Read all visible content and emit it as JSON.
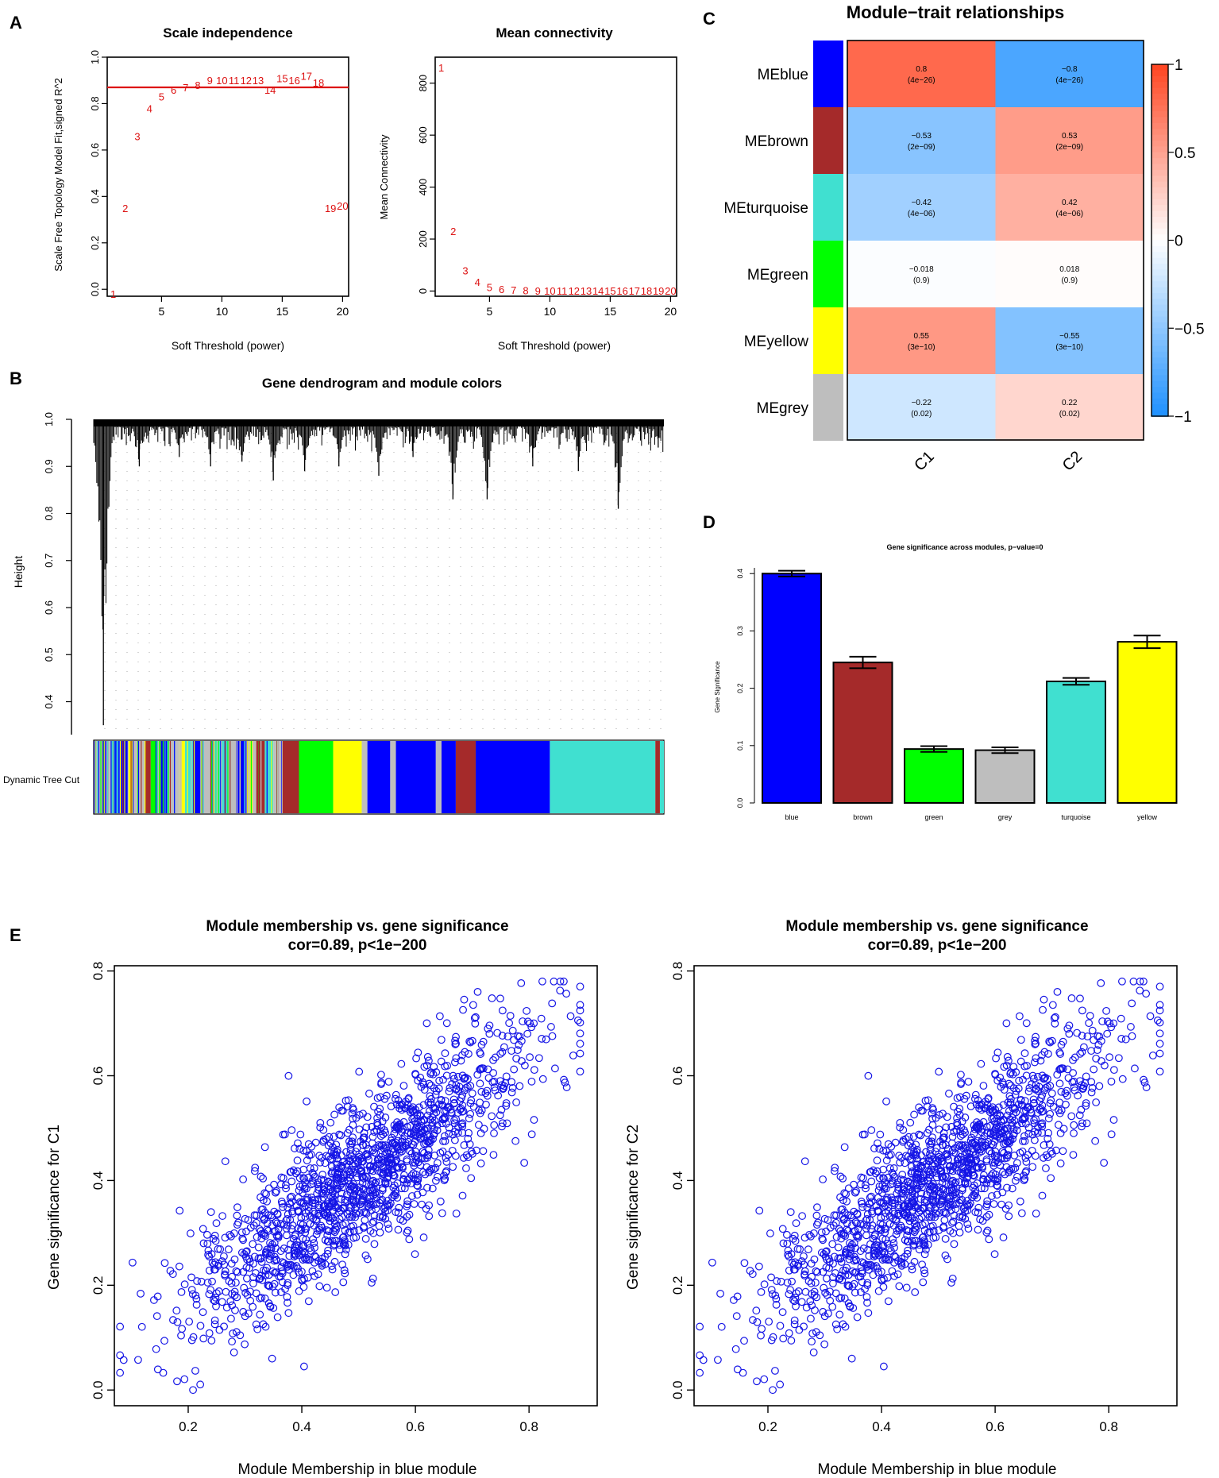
{
  "panel_labels": {
    "a": "A",
    "b": "B",
    "c": "C",
    "d": "D",
    "e": "E"
  },
  "colors": {
    "red": "#dd1111",
    "axis": "#000000",
    "scatter": "#1515e6"
  },
  "chart_data": [
    {
      "id": "scale_independence",
      "type": "scatter",
      "title": "Scale independence",
      "xlabel": "Soft Threshold (power)",
      "ylabel": "Scale Free Topology Model Fit,signed R^2",
      "xlim": [
        0.5,
        20.5
      ],
      "ylim": [
        -0.03,
        1.0
      ],
      "xticks": [
        5,
        10,
        15,
        20
      ],
      "yticks": [
        0.0,
        0.2,
        0.4,
        0.6,
        0.8,
        1.0
      ],
      "ytick_labels": [
        "0.0",
        "0.2",
        "0.4",
        "0.6",
        "0.8",
        "1.0"
      ],
      "hline": 0.87,
      "points": [
        {
          "x": 1,
          "y": -0.02,
          "label": "1"
        },
        {
          "x": 2,
          "y": 0.35,
          "label": "2"
        },
        {
          "x": 3,
          "y": 0.66,
          "label": "3"
        },
        {
          "x": 4,
          "y": 0.78,
          "label": "4"
        },
        {
          "x": 5,
          "y": 0.83,
          "label": "5"
        },
        {
          "x": 6,
          "y": 0.86,
          "label": "6"
        },
        {
          "x": 7,
          "y": 0.87,
          "label": "7"
        },
        {
          "x": 8,
          "y": 0.88,
          "label": "8"
        },
        {
          "x": 9,
          "y": 0.9,
          "label": "9"
        },
        {
          "x": 10,
          "y": 0.9,
          "label": "10"
        },
        {
          "x": 11,
          "y": 0.9,
          "label": "11"
        },
        {
          "x": 12,
          "y": 0.9,
          "label": "12"
        },
        {
          "x": 13,
          "y": 0.9,
          "label": "13"
        },
        {
          "x": 14,
          "y": 0.86,
          "label": "14"
        },
        {
          "x": 15,
          "y": 0.91,
          "label": "15"
        },
        {
          "x": 16,
          "y": 0.9,
          "label": "16"
        },
        {
          "x": 17,
          "y": 0.92,
          "label": "17"
        },
        {
          "x": 18,
          "y": 0.89,
          "label": "18"
        },
        {
          "x": 19,
          "y": 0.35,
          "label": "19"
        },
        {
          "x": 20,
          "y": 0.36,
          "label": "20"
        }
      ]
    },
    {
      "id": "mean_connectivity",
      "type": "scatter",
      "title": "Mean connectivity",
      "xlabel": "Soft Threshold (power)",
      "ylabel": "Mean Connectivity",
      "xlim": [
        0.5,
        20.5
      ],
      "ylim": [
        -20,
        900
      ],
      "xticks": [
        5,
        10,
        15,
        20
      ],
      "yticks": [
        0,
        200,
        400,
        600,
        800
      ],
      "ytick_labels": [
        "0",
        "200",
        "400",
        "600",
        "800"
      ],
      "points": [
        {
          "x": 1,
          "y": 860,
          "label": "1"
        },
        {
          "x": 2,
          "y": 230,
          "label": "2"
        },
        {
          "x": 3,
          "y": 80,
          "label": "3"
        },
        {
          "x": 4,
          "y": 35,
          "label": "4"
        },
        {
          "x": 5,
          "y": 15,
          "label": "5"
        },
        {
          "x": 6,
          "y": 7,
          "label": "6"
        },
        {
          "x": 7,
          "y": 5,
          "label": "7"
        },
        {
          "x": 8,
          "y": 3,
          "label": "8"
        },
        {
          "x": 9,
          "y": 2,
          "label": "9"
        },
        {
          "x": 10,
          "y": 1,
          "label": "10"
        },
        {
          "x": 11,
          "y": 1,
          "label": "11"
        },
        {
          "x": 12,
          "y": 1,
          "label": "12"
        },
        {
          "x": 13,
          "y": 1,
          "label": "13"
        },
        {
          "x": 14,
          "y": 1,
          "label": "14"
        },
        {
          "x": 15,
          "y": 1,
          "label": "15"
        },
        {
          "x": 16,
          "y": 1,
          "label": "16"
        },
        {
          "x": 17,
          "y": 1,
          "label": "17"
        },
        {
          "x": 18,
          "y": 1,
          "label": "18"
        },
        {
          "x": 19,
          "y": 1,
          "label": "19"
        },
        {
          "x": 20,
          "y": 1,
          "label": "20"
        }
      ]
    },
    {
      "id": "gene_dendrogram",
      "type": "dendrogram",
      "title": "Gene dendrogram and module colors",
      "ylabel": "Height",
      "ylim": [
        0.33,
        1.0
      ],
      "yticks": [
        0.4,
        0.5,
        0.6,
        0.7,
        0.8,
        0.9,
        1.0
      ],
      "ytick_labels": [
        "0.4",
        "0.5",
        "0.6",
        "0.7",
        "0.8",
        "0.9",
        "1.0"
      ],
      "color_bar_label": "Dynamic Tree Cut",
      "branch_dips": [
        {
          "pos": 0.017,
          "h": 0.35
        },
        {
          "pos": 0.08,
          "h": 0.9
        },
        {
          "pos": 0.15,
          "h": 0.92
        },
        {
          "pos": 0.205,
          "h": 0.9
        },
        {
          "pos": 0.26,
          "h": 0.91
        },
        {
          "pos": 0.315,
          "h": 0.87
        },
        {
          "pos": 0.37,
          "h": 0.89
        },
        {
          "pos": 0.43,
          "h": 0.9
        },
        {
          "pos": 0.5,
          "h": 0.88
        },
        {
          "pos": 0.56,
          "h": 0.92
        },
        {
          "pos": 0.63,
          "h": 0.83
        },
        {
          "pos": 0.69,
          "h": 0.83
        },
        {
          "pos": 0.77,
          "h": 0.9
        },
        {
          "pos": 0.85,
          "h": 0.89
        },
        {
          "pos": 0.92,
          "h": 0.81
        },
        {
          "pos": 0.99,
          "h": 0.94
        }
      ],
      "module_segments": [
        {
          "module": "grey",
          "start": 0.0,
          "end": 0.03
        },
        {
          "module": "turquoise",
          "start": 0.03,
          "end": 0.045
        },
        {
          "module": "blue",
          "start": 0.045,
          "end": 0.06
        },
        {
          "module": "yellow",
          "start": 0.06,
          "end": 0.07
        },
        {
          "module": "grey",
          "start": 0.07,
          "end": 0.09
        },
        {
          "module": "brown",
          "start": 0.09,
          "end": 0.1
        },
        {
          "module": "green",
          "start": 0.1,
          "end": 0.115
        },
        {
          "module": "blue",
          "start": 0.115,
          "end": 0.13
        },
        {
          "module": "grey",
          "start": 0.13,
          "end": 0.15
        },
        {
          "module": "yellow",
          "start": 0.15,
          "end": 0.16
        },
        {
          "module": "turquoise",
          "start": 0.16,
          "end": 0.175
        },
        {
          "module": "blue",
          "start": 0.175,
          "end": 0.19
        },
        {
          "module": "grey",
          "start": 0.19,
          "end": 0.205
        },
        {
          "module": "green",
          "start": 0.205,
          "end": 0.215
        },
        {
          "module": "turquoise",
          "start": 0.215,
          "end": 0.235
        },
        {
          "module": "grey",
          "start": 0.235,
          "end": 0.25
        },
        {
          "module": "blue",
          "start": 0.25,
          "end": 0.27
        },
        {
          "module": "grey",
          "start": 0.27,
          "end": 0.285
        },
        {
          "module": "brown",
          "start": 0.285,
          "end": 0.3
        },
        {
          "module": "turquoise",
          "start": 0.3,
          "end": 0.315
        },
        {
          "module": "grey",
          "start": 0.315,
          "end": 0.33
        },
        {
          "module": "brown",
          "start": 0.33,
          "end": 0.36
        },
        {
          "module": "green",
          "start": 0.36,
          "end": 0.42
        },
        {
          "module": "yellow",
          "start": 0.42,
          "end": 0.47
        },
        {
          "module": "grey",
          "start": 0.47,
          "end": 0.48
        },
        {
          "module": "blue",
          "start": 0.48,
          "end": 0.52
        },
        {
          "module": "grey",
          "start": 0.52,
          "end": 0.53
        },
        {
          "module": "blue",
          "start": 0.53,
          "end": 0.6
        },
        {
          "module": "grey",
          "start": 0.6,
          "end": 0.61
        },
        {
          "module": "blue",
          "start": 0.61,
          "end": 0.635
        },
        {
          "module": "brown",
          "start": 0.635,
          "end": 0.67
        },
        {
          "module": "blue",
          "start": 0.67,
          "end": 0.8
        },
        {
          "module": "turquoise",
          "start": 0.8,
          "end": 0.985
        },
        {
          "module": "brown",
          "start": 0.985,
          "end": 0.993
        },
        {
          "module": "turquoise",
          "start": 0.993,
          "end": 1.0
        }
      ]
    },
    {
      "id": "module_trait",
      "type": "heatmap",
      "title": "Module−trait relationships",
      "rows": [
        "MEblue",
        "MEbrown",
        "MEturquoise",
        "MEgreen",
        "MEyellow",
        "MEgrey"
      ],
      "row_colors": [
        "#0000ff",
        "#a52a2a",
        "#40e0d0",
        "#00ff00",
        "#ffff00",
        "#bebebe"
      ],
      "columns": [
        "C1",
        "C2"
      ],
      "cells": [
        [
          {
            "cor": 0.8,
            "label": "0.8",
            "p": "(4e−26)"
          },
          {
            "cor": -0.8,
            "label": "−0.8",
            "p": "(4e−26)"
          }
        ],
        [
          {
            "cor": -0.53,
            "label": "−0.53",
            "p": "(2e−09)"
          },
          {
            "cor": 0.53,
            "label": "0.53",
            "p": "(2e−09)"
          }
        ],
        [
          {
            "cor": -0.42,
            "label": "−0.42",
            "p": "(4e−06)"
          },
          {
            "cor": 0.42,
            "label": "0.42",
            "p": "(4e−06)"
          }
        ],
        [
          {
            "cor": -0.018,
            "label": "−0.018",
            "p": "(0.9)"
          },
          {
            "cor": 0.018,
            "label": "0.018",
            "p": "(0.9)"
          }
        ],
        [
          {
            "cor": 0.55,
            "label": "0.55",
            "p": "(3e−10)"
          },
          {
            "cor": -0.55,
            "label": "−0.55",
            "p": "(3e−10)"
          }
        ],
        [
          {
            "cor": -0.22,
            "label": "−0.22",
            "p": "(0.02)"
          },
          {
            "cor": 0.22,
            "label": "0.22",
            "p": "(0.02)"
          }
        ]
      ],
      "colorbar": {
        "min": -1,
        "max": 1,
        "ticks": [
          1,
          0.5,
          0,
          -0.5,
          -1
        ],
        "tick_labels": [
          "1",
          "0.5",
          "0",
          "−0.5",
          "−1"
        ]
      }
    },
    {
      "id": "gene_significance",
      "type": "bar",
      "title": "Gene significance across modules, p−value=0",
      "ylabel": "Gene Significance",
      "ylim": [
        0,
        0.41
      ],
      "yticks": [
        0.0,
        0.1,
        0.2,
        0.3,
        0.4
      ],
      "ytick_labels": [
        "0.0",
        "0.1",
        "0.2",
        "0.3",
        "0.4"
      ],
      "categories": [
        "blue",
        "brown",
        "green",
        "grey",
        "turquoise",
        "yellow"
      ],
      "values": [
        0.4,
        0.245,
        0.094,
        0.092,
        0.212,
        0.281
      ],
      "errors": [
        0.005,
        0.01,
        0.005,
        0.005,
        0.006,
        0.011
      ],
      "bar_colors": [
        "#0000ff",
        "#a52a2a",
        "#00ff00",
        "#bebebe",
        "#40e0d0",
        "#ffff00"
      ]
    },
    {
      "id": "mm_vs_gs_c1",
      "type": "scatter",
      "title": "Module membership vs. gene significance",
      "subtitle": "cor=0.89, p<1e−200",
      "xlabel": "Module Membership in blue module",
      "ylabel": "Gene significance for  C1",
      "xlim": [
        0.07,
        0.92
      ],
      "ylim": [
        -0.03,
        0.81
      ],
      "xticks": [
        0.2,
        0.4,
        0.6,
        0.8
      ],
      "xtick_labels": [
        "0.2",
        "0.4",
        "0.6",
        "0.8"
      ],
      "yticks": [
        0.0,
        0.2,
        0.4,
        0.6,
        0.8
      ],
      "ytick_labels": [
        "0.0",
        "0.2",
        "0.4",
        "0.6",
        "0.8"
      ],
      "n_points": 1500,
      "trend": {
        "slope": 0.8,
        "intercept": 0.0,
        "sd": 0.075
      },
      "x_range": [
        0.08,
        0.89
      ],
      "seed": 7
    },
    {
      "id": "mm_vs_gs_c2",
      "type": "scatter",
      "title": "Module membership vs. gene significance",
      "subtitle": "cor=0.89, p<1e−200",
      "xlabel": "Module Membership in blue module",
      "ylabel": "Gene significance for  C2",
      "xlim": [
        0.07,
        0.92
      ],
      "ylim": [
        -0.03,
        0.81
      ],
      "xticks": [
        0.2,
        0.4,
        0.6,
        0.8
      ],
      "xtick_labels": [
        "0.2",
        "0.4",
        "0.6",
        "0.8"
      ],
      "yticks": [
        0.0,
        0.2,
        0.4,
        0.6,
        0.8
      ],
      "ytick_labels": [
        "0.0",
        "0.2",
        "0.4",
        "0.6",
        "0.8"
      ],
      "n_points": 1500,
      "trend": {
        "slope": 0.8,
        "intercept": 0.0,
        "sd": 0.075
      },
      "x_range": [
        0.08,
        0.89
      ],
      "seed": 7
    }
  ]
}
